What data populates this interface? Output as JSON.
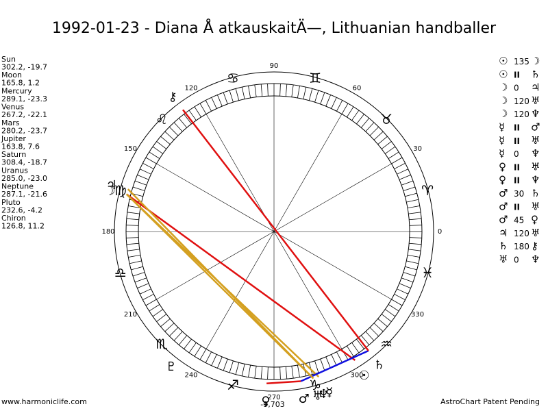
{
  "title": "1992-01-23 - Diana Å atkauskaitÄ—, Lithuanian handballer",
  "planets": [
    {
      "name": "Sun",
      "glyph": "☉",
      "position": "302.2, -19.7"
    },
    {
      "name": "Moon",
      "glyph": "☽",
      "position": "165.8, 1.2"
    },
    {
      "name": "Mercury",
      "glyph": "☿",
      "position": "289.1, -23.3"
    },
    {
      "name": "Venus",
      "glyph": "♀",
      "position": "267.2, -22.1"
    },
    {
      "name": "Mars",
      "glyph": "♂",
      "position": "280.2, -23.7"
    },
    {
      "name": "Jupiter",
      "glyph": "♃",
      "position": "163.8, 7.6"
    },
    {
      "name": "Saturn",
      "glyph": "♄",
      "position": "308.4, -18.7"
    },
    {
      "name": "Uranus",
      "glyph": "♅",
      "position": "285.0, -23.0"
    },
    {
      "name": "Neptune",
      "glyph": "♆",
      "position": "287.1, -21.6"
    },
    {
      "name": "Pluto",
      "glyph": "♇",
      "position": "232.6, -4.2"
    },
    {
      "name": "Chiron",
      "glyph": "⚷",
      "position": "126.8, 11.2"
    }
  ],
  "aspects": [
    {
      "p1": "☉",
      "aspect": "135",
      "p2": "☽"
    },
    {
      "p1": "☉",
      "aspect": "II",
      "p2": "♄"
    },
    {
      "p1": "☽",
      "aspect": "0",
      "p2": "♃"
    },
    {
      "p1": "☽",
      "aspect": "120",
      "p2": "♅"
    },
    {
      "p1": "☽",
      "aspect": "120",
      "p2": "♆"
    },
    {
      "p1": "☿",
      "aspect": "II",
      "p2": "♂"
    },
    {
      "p1": "☿",
      "aspect": "II",
      "p2": "♅"
    },
    {
      "p1": "☿",
      "aspect": "0",
      "p2": "♆"
    },
    {
      "p1": "♀",
      "aspect": "II",
      "p2": "♅"
    },
    {
      "p1": "♀",
      "aspect": "II",
      "p2": "♆"
    },
    {
      "p1": "♂",
      "aspect": "30",
      "p2": "♄"
    },
    {
      "p1": "♂",
      "aspect": "II",
      "p2": "♅"
    },
    {
      "p1": "♂",
      "aspect": "45",
      "p2": "♀"
    },
    {
      "p1": "♃",
      "aspect": "120",
      "p2": "♅"
    },
    {
      "p1": "♄",
      "aspect": "180",
      "p2": "⚷"
    },
    {
      "p1": "♅",
      "aspect": "0",
      "p2": "♆"
    }
  ],
  "aspect_colors": {
    "135": "#e01010",
    "180": "#e01010",
    "45": "#e01010",
    "120": "#d4a020",
    "30": "#1010e0"
  },
  "signs": [
    "♈",
    "♉",
    "♊",
    "♋",
    "♌",
    "♍",
    "♎",
    "♏",
    "♐",
    "♑",
    "♒",
    "♓"
  ],
  "degree_ticks": [
    0,
    30,
    60,
    90,
    120,
    150,
    180,
    210,
    240,
    270,
    300,
    330
  ],
  "bottom_value": "-9,703",
  "footer": {
    "left": "www.harmoniclife.com",
    "right": "AstroChart Patent Pending"
  }
}
